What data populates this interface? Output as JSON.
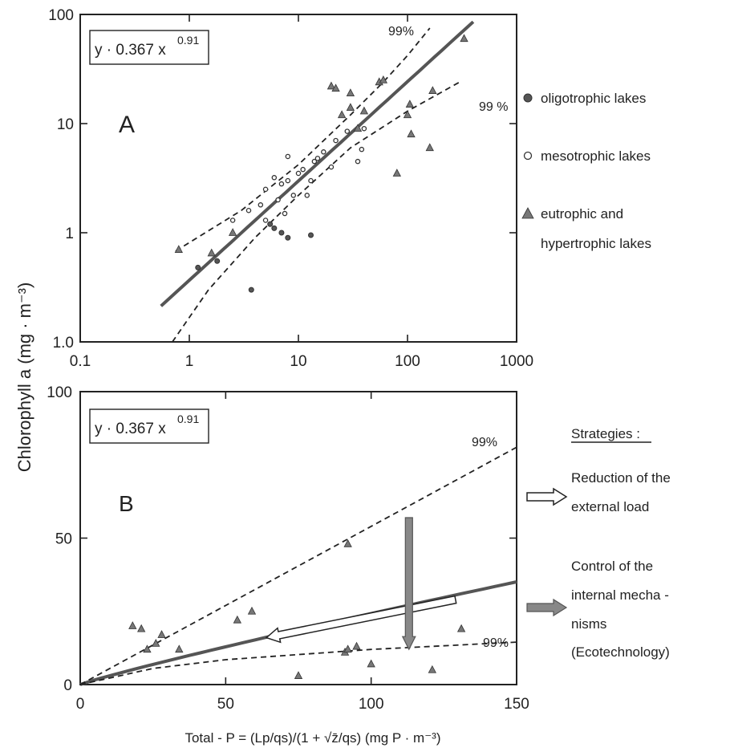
{
  "y_axis_title": "Chlorophyll a (mg · m⁻³)",
  "x_axis_title": "Total - P = (Lp/qs)/(1 + √z̄/qs) (mg P · m⁻³)",
  "legend": {
    "oligo": "oligotrophic lakes",
    "meso": "mesotrophic lakes",
    "eu_line1": "eutrophic and",
    "eu_line2": "hypertrophic lakes"
  },
  "strategies": {
    "title": "Strategies :",
    "s1_line1": "Reduction of the",
    "s1_line2": "external load",
    "s2_line1": "Control of the",
    "s2_line2": "internal mecha -",
    "s2_line3": "nisms",
    "s2_line4": "(Ecotechnology)"
  },
  "colors": {
    "fit_line": "#555555",
    "triangle": "#777777",
    "arrow_grey": "#888888"
  },
  "chart_data": [
    {
      "panel": "A",
      "type": "scatter",
      "x_scale": "log",
      "y_scale": "log",
      "xlim": [
        0.1,
        1000
      ],
      "ylim": [
        0.1,
        100
      ],
      "x_ticks": [
        "0.1",
        "1",
        "10",
        "100",
        "1000"
      ],
      "y_ticks": [
        "1.0",
        "1",
        "10",
        "100"
      ],
      "equation": "y · 0.367 x",
      "equation_exp": "0.91",
      "annotations": [
        "99%",
        "99 %"
      ],
      "fit": {
        "a": 0.367,
        "b": 0.91,
        "x_range": [
          0.55,
          400
        ]
      },
      "upper_99": [
        [
          0.75,
          0.68
        ],
        [
          3,
          1.6
        ],
        [
          10,
          4.2
        ],
        [
          30,
          12
        ],
        [
          60,
          24
        ],
        [
          100,
          42
        ],
        [
          160,
          75
        ]
      ],
      "lower_99": [
        [
          0.7,
          0.1
        ],
        [
          1.5,
          0.3
        ],
        [
          4,
          0.9
        ],
        [
          10,
          2.2
        ],
        [
          30,
          6
        ],
        [
          100,
          13
        ],
        [
          300,
          24
        ]
      ],
      "series": [
        {
          "name": "oligotrophic lakes",
          "marker": "filled-circle",
          "points": [
            [
              3.7,
              0.3
            ],
            [
              8,
              0.9
            ],
            [
              13,
              0.95
            ],
            [
              7,
              1.0
            ],
            [
              6,
              1.1
            ],
            [
              5.5,
              1.2
            ],
            [
              1.8,
              0.55
            ],
            [
              1.2,
              0.48
            ]
          ]
        },
        {
          "name": "mesotrophic lakes",
          "marker": "open-circle",
          "points": [
            [
              2.5,
              1.3
            ],
            [
              3.5,
              1.6
            ],
            [
              4.5,
              1.8
            ],
            [
              5,
              2.5
            ],
            [
              6,
              3.2
            ],
            [
              6.5,
              2.0
            ],
            [
              7,
              2.8
            ],
            [
              7.5,
              1.5
            ],
            [
              8,
              3.0
            ],
            [
              8,
              5.0
            ],
            [
              9,
              2.2
            ],
            [
              10,
              3.5
            ],
            [
              11,
              3.8
            ],
            [
              12,
              2.2
            ],
            [
              13,
              3.0
            ],
            [
              14,
              4.5
            ],
            [
              15,
              4.8
            ],
            [
              17,
              5.5
            ],
            [
              20,
              4.0
            ],
            [
              22,
              7.0
            ],
            [
              28,
              8.5
            ],
            [
              35,
              4.5
            ],
            [
              38,
              5.8
            ],
            [
              40,
              9.0
            ],
            [
              5,
              1.3
            ]
          ]
        },
        {
          "name": "eutrophic and hypertrophic lakes",
          "marker": "triangle",
          "points": [
            [
              0.8,
              0.7
            ],
            [
              1.6,
              0.65
            ],
            [
              2.5,
              1.0
            ],
            [
              20,
              22
            ],
            [
              22,
              21
            ],
            [
              25,
              12
            ],
            [
              30,
              14
            ],
            [
              30,
              19
            ],
            [
              35,
              9
            ],
            [
              40,
              13
            ],
            [
              55,
              24
            ],
            [
              60,
              25
            ],
            [
              80,
              3.5
            ],
            [
              100,
              12
            ],
            [
              105,
              15
            ],
            [
              108,
              8
            ],
            [
              160,
              6
            ],
            [
              170,
              20
            ],
            [
              330,
              60
            ]
          ]
        }
      ]
    },
    {
      "panel": "B",
      "type": "scatter",
      "x_scale": "linear",
      "y_scale": "linear",
      "xlim": [
        0,
        150
      ],
      "ylim": [
        0,
        100
      ],
      "x_ticks": [
        "0",
        "50",
        "100",
        "150"
      ],
      "y_ticks": [
        "0",
        "50",
        "100"
      ],
      "equation": "y · 0.367 x",
      "equation_exp": "0.91",
      "annotations": [
        "99%",
        "99%"
      ],
      "fit": {
        "a": 0.367,
        "b": 0.91,
        "x_range": [
          0,
          150
        ]
      },
      "upper_99": [
        [
          0,
          0
        ],
        [
          150,
          81
        ]
      ],
      "lower_99": [
        [
          0,
          0
        ],
        [
          25,
          5.5
        ],
        [
          50,
          8.5
        ],
        [
          100,
          12
        ],
        [
          150,
          14.5
        ]
      ],
      "series": [
        {
          "name": "eutrophic and hypertrophic lakes",
          "marker": "triangle",
          "points": [
            [
              18,
              20
            ],
            [
              21,
              19
            ],
            [
              23,
              12
            ],
            [
              26,
              14
            ],
            [
              28,
              17
            ],
            [
              34,
              12
            ],
            [
              54,
              22
            ],
            [
              59,
              25
            ],
            [
              75,
              3
            ],
            [
              91,
              11
            ],
            [
              92,
              12
            ],
            [
              92,
              48
            ],
            [
              95,
              13
            ],
            [
              100,
              7
            ],
            [
              121,
              5
            ],
            [
              131,
              19
            ]
          ]
        }
      ],
      "strategy_arrows": {
        "reduction_external_load": {
          "from": [
            129,
            29
          ],
          "to": [
            64,
            16
          ]
        },
        "control_internal_mechanisms": {
          "from": [
            113,
            57
          ],
          "to": [
            113,
            12
          ]
        }
      }
    }
  ]
}
